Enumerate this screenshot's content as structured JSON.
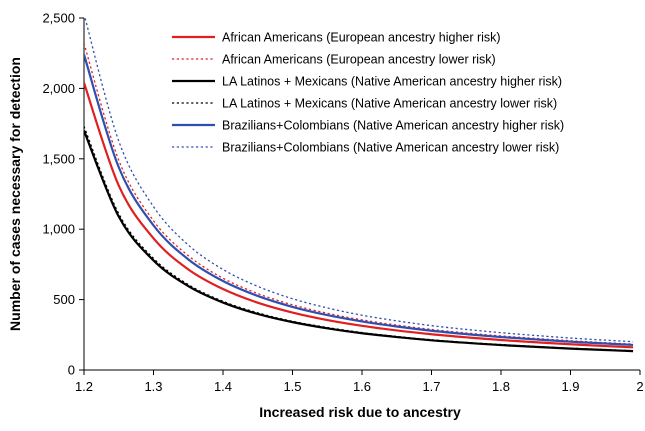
{
  "chart_data": {
    "type": "line",
    "xlabel": "Increased risk due to ancestry",
    "ylabel": "Number of cases necessary for detection",
    "xlim": [
      1.2,
      2.0
    ],
    "ylim": [
      0,
      2500
    ],
    "x_ticks": [
      "1.2",
      "1.3",
      "1.4",
      "1.5",
      "1.6",
      "1.7",
      "1.8",
      "1.9",
      "2"
    ],
    "y_ticks": [
      "0",
      "500",
      "1,000",
      "1,500",
      "2,000",
      "2,500"
    ],
    "grid": false,
    "legend_position": "top-right",
    "x": [
      1.2,
      1.25,
      1.3,
      1.35,
      1.4,
      1.45,
      1.5,
      1.55,
      1.6,
      1.65,
      1.7,
      1.75,
      1.8,
      1.85,
      1.9,
      1.95,
      1.99
    ],
    "series": [
      {
        "name": "African Americans (European ancestry higher risk)",
        "color": "#e02020",
        "dash": "solid",
        "values": [
          2040,
          1310,
          935,
          715,
          575,
          478,
          408,
          355,
          314,
          281,
          254,
          232,
          213,
          197,
          183,
          170,
          161
        ]
      },
      {
        "name": "African Americans (European ancestry lower risk)",
        "color": "#e02020",
        "dash": "dotted",
        "values": [
          2320,
          1490,
          1060,
          812,
          652,
          543,
          463,
          403,
          356,
          319,
          288,
          263,
          242,
          224,
          208,
          194,
          184
        ]
      },
      {
        "name": "LA Latinos + Mexicans (Native American ancestry higher risk)",
        "color": "#000000",
        "dash": "solid",
        "values": [
          1700,
          1090,
          778,
          596,
          479,
          398,
          340,
          296,
          261,
          234,
          211,
          193,
          177,
          164,
          152,
          142,
          134
        ]
      },
      {
        "name": "LA Latinos + Mexicans (Native American ancestry lower risk)",
        "color": "#000000",
        "dash": "dotted",
        "values": [
          1730,
          1110,
          793,
          607,
          488,
          406,
          346,
          302,
          266,
          238,
          215,
          196,
          181,
          167,
          155,
          145,
          137
        ]
      },
      {
        "name": "Brazilians+Colombians (Native American ancestry higher risk)",
        "color": "#2f4fb0",
        "dash": "solid",
        "values": [
          2240,
          1440,
          1027,
          786,
          632,
          526,
          448,
          390,
          345,
          309,
          279,
          255,
          234,
          217,
          201,
          188,
          178
        ]
      },
      {
        "name": "Brazilians+Colombians (Native American ancestry lower risk)",
        "color": "#2f4fb0",
        "dash": "dotted",
        "values": [
          2530,
          1626,
          1160,
          888,
          714,
          594,
          506,
          441,
          389,
          349,
          315,
          288,
          265,
          245,
          227,
          212,
          201
        ]
      }
    ]
  }
}
